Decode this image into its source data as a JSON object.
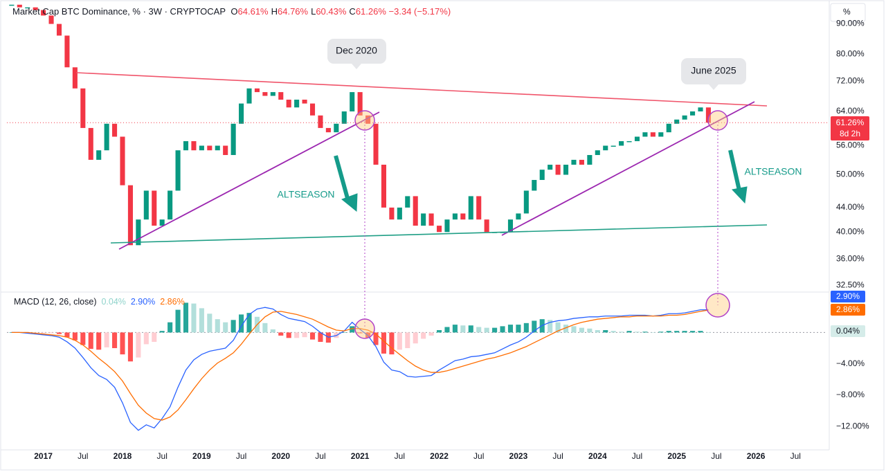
{
  "chart_data": [
    {
      "type": "candlestick",
      "title": "Market Cap BTC Dominance, % · 3W · CRYPTOCAP",
      "ohlc": [
        {
          "key": "O",
          "value": "64.61%"
        },
        {
          "key": "H",
          "value": "64.76%"
        },
        {
          "key": "L",
          "value": "60.43%"
        },
        {
          "key": "C",
          "value": "61.26%"
        }
      ],
      "change": "−3.34 (−5.17%)",
      "unit": "%",
      "x": [
        2016.6,
        2016.7,
        2016.8,
        2016.9,
        2017.0,
        2017.1,
        2017.2,
        2017.3,
        2017.4,
        2017.5,
        2017.6,
        2017.7,
        2017.8,
        2017.9,
        2018.0,
        2018.1,
        2018.2,
        2018.3,
        2018.4,
        2018.5,
        2018.6,
        2018.7,
        2018.8,
        2018.9,
        2019.0,
        2019.1,
        2019.2,
        2019.3,
        2019.4,
        2019.5,
        2019.6,
        2019.7,
        2019.8,
        2019.9,
        2020.0,
        2020.1,
        2020.2,
        2020.3,
        2020.4,
        2020.5,
        2020.6,
        2020.7,
        2020.8,
        2020.9,
        2021.0,
        2021.1,
        2021.2,
        2021.3,
        2021.4,
        2021.5,
        2021.6,
        2021.7,
        2021.8,
        2021.9,
        2022.0,
        2022.1,
        2022.2,
        2022.3,
        2022.4,
        2022.5,
        2022.6,
        2022.7,
        2022.8,
        2022.9,
        2023.0,
        2023.1,
        2023.2,
        2023.3,
        2023.4,
        2023.5,
        2023.6,
        2023.7,
        2023.8,
        2023.9,
        2024.0,
        2024.1,
        2024.2,
        2024.3,
        2024.4,
        2024.5,
        2024.6,
        2024.7,
        2024.8,
        2024.9,
        2025.0,
        2025.1,
        2025.2,
        2025.3,
        2025.4
      ],
      "close": [
        97,
        96,
        96,
        95,
        93,
        90,
        86,
        76,
        70,
        60,
        53,
        55,
        61,
        58,
        48,
        38,
        42,
        47,
        41,
        42,
        47,
        55,
        57,
        55,
        56,
        55,
        56,
        54,
        61,
        66,
        70,
        69,
        68,
        69,
        67,
        65,
        67,
        66,
        63,
        60,
        59,
        61,
        64,
        69,
        63,
        61,
        52,
        44,
        42,
        44,
        46,
        41,
        43,
        41,
        40,
        42,
        43,
        42,
        46,
        42,
        40,
        40,
        40,
        42,
        43,
        47,
        49,
        51,
        52,
        50,
        52,
        53,
        52,
        54,
        55,
        56,
        56,
        57,
        57,
        58,
        59,
        58,
        59,
        61,
        62,
        63,
        64,
        65,
        61.26
      ],
      "up_color": "#089981",
      "down_color": "#f23645",
      "log_scale": true,
      "xlim": [
        2016.54,
        2026.9
      ],
      "ylim": [
        32,
        98
      ],
      "xticks": [
        2017,
        {
          "value": 2017.5,
          "label": "Jul"
        },
        2018,
        {
          "value": 2018.5,
          "label": "Jul"
        },
        2019,
        {
          "value": 2019.5,
          "label": "Jul"
        },
        2020,
        {
          "value": 2020.5,
          "label": "Jul"
        },
        2021,
        {
          "value": 2021.5,
          "label": "Jul"
        },
        2022,
        {
          "value": 2022.5,
          "label": "Jul"
        },
        2023,
        {
          "value": 2023.5,
          "label": "Jul"
        },
        2024,
        {
          "value": 2024.5,
          "label": "Jul"
        },
        2025,
        {
          "value": 2025.5,
          "label": "Jul"
        },
        2026,
        {
          "value": 2026.5,
          "label": "Jul"
        }
      ],
      "yticks": [
        {
          "value": 90,
          "label": "90.00%"
        },
        {
          "value": 80,
          "label": "80.00%"
        },
        {
          "value": 72,
          "label": "72.00%"
        },
        {
          "value": 64,
          "label": "64.00%"
        },
        {
          "value": 56,
          "label": "56.00%"
        },
        {
          "value": 50,
          "label": "50.00%"
        },
        {
          "value": 44,
          "label": "44.00%"
        },
        {
          "value": 40,
          "label": "40.00%"
        },
        {
          "value": 36,
          "label": "36.00%"
        },
        {
          "value": 32.5,
          "label": "32.50%"
        }
      ],
      "last_label": "61.26%",
      "countdown": "8d 2h",
      "annotations": [
        "Dec 2020",
        "June 2025",
        "ALTSEASON",
        "ALTSEASON"
      ]
    },
    {
      "type": "macd",
      "title": "MACD (12, 26, close)",
      "x": [
        2016.6,
        2016.7,
        2016.8,
        2016.9,
        2017.0,
        2017.1,
        2017.2,
        2017.3,
        2017.4,
        2017.5,
        2017.6,
        2017.7,
        2017.8,
        2017.9,
        2018.0,
        2018.1,
        2018.2,
        2018.3,
        2018.4,
        2018.5,
        2018.6,
        2018.7,
        2018.8,
        2018.9,
        2019.0,
        2019.1,
        2019.2,
        2019.3,
        2019.4,
        2019.5,
        2019.6,
        2019.7,
        2019.8,
        2019.9,
        2020.0,
        2020.1,
        2020.2,
        2020.3,
        2020.4,
        2020.5,
        2020.6,
        2020.7,
        2020.8,
        2020.9,
        2021.0,
        2021.1,
        2021.2,
        2021.3,
        2021.4,
        2021.5,
        2021.6,
        2021.7,
        2021.8,
        2021.9,
        2022.0,
        2022.1,
        2022.2,
        2022.3,
        2022.4,
        2022.5,
        2022.6,
        2022.7,
        2022.8,
        2022.9,
        2023.0,
        2023.1,
        2023.2,
        2023.3,
        2023.4,
        2023.5,
        2023.6,
        2023.7,
        2023.8,
        2023.9,
        2024.0,
        2024.1,
        2024.2,
        2024.3,
        2024.4,
        2024.5,
        2024.6,
        2024.7,
        2024.8,
        2024.9,
        2025.0,
        2025.1,
        2025.2,
        2025.3,
        2025.4
      ],
      "xlim": [
        2016.54,
        2026.9
      ],
      "ylim": [
        -15,
        4.9
      ],
      "yticks": [
        {
          "value": -4,
          "label": "−4.00%"
        },
        {
          "value": -8,
          "label": "−8.00%"
        },
        {
          "value": -12,
          "label": "−12.00%"
        }
      ],
      "series": [
        {
          "color": "#2962ff",
          "last_label": "2.90%",
          "values": [
            0,
            0,
            -0.1,
            -0.2,
            -0.3,
            -0.4,
            -0.6,
            -1.2,
            -2.0,
            -3.2,
            -4.5,
            -5.5,
            -6.0,
            -7.0,
            -9.0,
            -11.5,
            -12.5,
            -11.8,
            -12.2,
            -11.0,
            -9.5,
            -7.0,
            -4.8,
            -3.5,
            -2.8,
            -2.4,
            -2.2,
            -2.0,
            -1.0,
            0.8,
            2.3,
            3.0,
            3.2,
            3.0,
            2.3,
            1.8,
            1.6,
            1.4,
            0.8,
            0.0,
            -0.6,
            -0.4,
            0.2,
            1.3,
            0.4,
            -0.4,
            -1.8,
            -3.8,
            -4.8,
            -5.0,
            -5.6,
            -5.7,
            -5.6,
            -5.5,
            -4.8,
            -4.2,
            -3.6,
            -3.4,
            -3.1,
            -3.0,
            -2.8,
            -2.6,
            -2.1,
            -1.6,
            -1.2,
            -0.6,
            0.2,
            0.9,
            1.3,
            1.5,
            1.6,
            1.8,
            1.9,
            2.0,
            2.0,
            2.1,
            2.1,
            2.1,
            2.2,
            2.2,
            2.2,
            2.1,
            2.2,
            2.4,
            2.4,
            2.5,
            2.7,
            2.9,
            2.9
          ]
        },
        {
          "color": "#ff6d00",
          "last_label": "2.86%",
          "values": [
            0,
            0,
            0,
            -0.1,
            -0.2,
            -0.3,
            -0.4,
            -0.6,
            -1.0,
            -1.6,
            -2.4,
            -3.3,
            -4.1,
            -5.0,
            -6.2,
            -7.8,
            -9.3,
            -10.3,
            -11.0,
            -11.2,
            -10.8,
            -9.9,
            -8.6,
            -7.2,
            -5.9,
            -4.8,
            -3.9,
            -3.3,
            -2.6,
            -1.5,
            -0.2,
            1.0,
            2.0,
            2.6,
            2.7,
            2.5,
            2.3,
            2.0,
            1.7,
            1.2,
            0.7,
            0.3,
            0.2,
            0.5,
            0.5,
            0.3,
            -0.2,
            -1.1,
            -2.0,
            -2.8,
            -3.6,
            -4.3,
            -4.8,
            -5.1,
            -5.1,
            -4.9,
            -4.6,
            -4.3,
            -4.0,
            -3.7,
            -3.4,
            -3.2,
            -2.9,
            -2.6,
            -2.2,
            -1.8,
            -1.3,
            -0.8,
            -0.3,
            0.2,
            0.6,
            1.0,
            1.3,
            1.5,
            1.7,
            1.8,
            1.9,
            2.0,
            2.0,
            2.1,
            2.1,
            2.1,
            2.1,
            2.2,
            2.2,
            2.3,
            2.5,
            2.7,
            2.86
          ]
        }
      ],
      "histogram": {
        "colors": [
          "#26a69a",
          "#b2dfdb",
          "#ff5252",
          "#ffcdd2"
        ],
        "last_label": "0.04%",
        "values": [
          0,
          0,
          -0.1,
          -0.1,
          -0.1,
          -0.1,
          -0.2,
          -0.6,
          -1.0,
          -1.6,
          -2.1,
          -2.2,
          -1.9,
          -2.0,
          -2.8,
          -3.7,
          -3.2,
          -1.5,
          -1.2,
          0.2,
          1.3,
          2.9,
          3.8,
          3.7,
          3.1,
          2.4,
          1.7,
          1.3,
          1.6,
          2.3,
          2.5,
          2.0,
          1.2,
          0.4,
          -0.4,
          -0.7,
          -0.7,
          -0.6,
          -0.9,
          -1.2,
          -1.3,
          -0.7,
          0,
          0.8,
          -0.1,
          -0.7,
          -1.6,
          -2.7,
          -2.8,
          -2.2,
          -2.0,
          -1.4,
          -0.8,
          -0.4,
          0.3,
          0.7,
          1.0,
          0.9,
          0.9,
          0.7,
          0.6,
          0.6,
          0.8,
          1.0,
          1.0,
          1.2,
          1.5,
          1.7,
          1.6,
          1.3,
          1.0,
          0.8,
          0.6,
          0.5,
          0.3,
          0.3,
          0.2,
          0.1,
          0.2,
          0.1,
          0.1,
          0,
          0.1,
          0.2,
          0.2,
          0.2,
          0.2,
          0.2,
          0.04
        ]
      }
    }
  ]
}
